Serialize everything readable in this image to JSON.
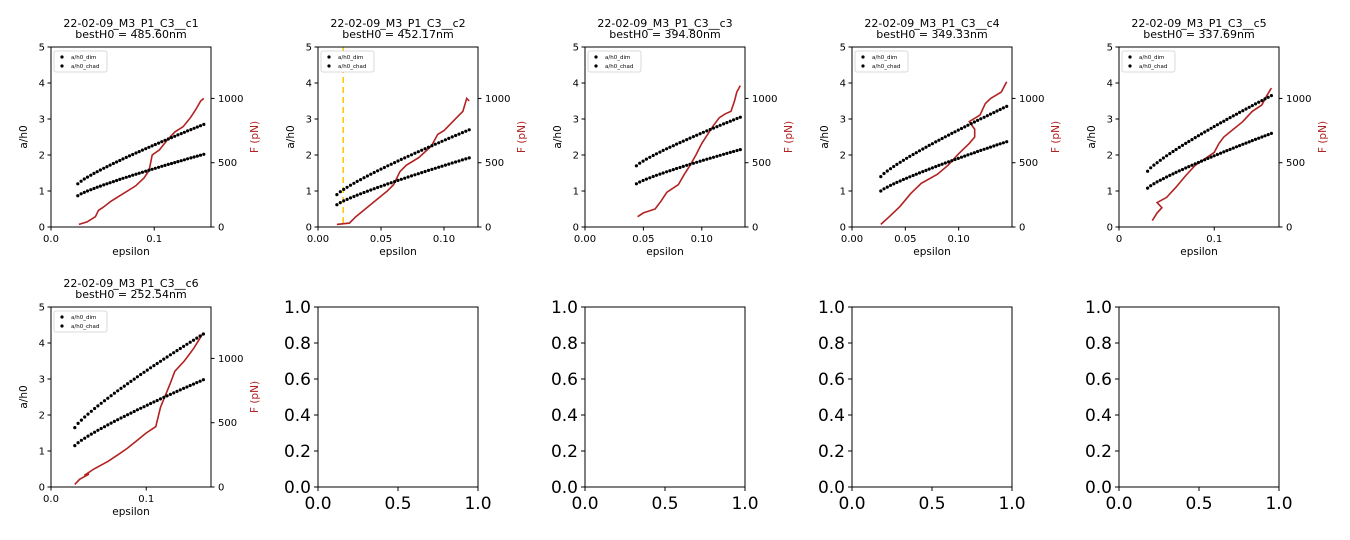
{
  "figure": {
    "background": "#ffffff",
    "grid_rows": 2,
    "grid_cols": 5
  },
  "colors": {
    "dim": "#000000",
    "chad": "#000000",
    "force": "#b22222",
    "right_axis": "#b22222",
    "vline": "#ffc400"
  },
  "chart_data": [
    {
      "type": "scatter+line",
      "title": "22-02-09_M3_P1_C3__c1",
      "subtitle": "bestH0 = 485.60nm",
      "xlabel": "epsilon",
      "ylabel": "a/h0",
      "y2label": "F (pN)",
      "xlim": [
        0,
        0.155
      ],
      "xticks": [
        0.0,
        0.1
      ],
      "xtick_labels": [
        "0.0",
        "0.1"
      ],
      "ylim": [
        0,
        5
      ],
      "yticks": [
        0,
        1,
        2,
        3,
        4,
        5
      ],
      "ytick_labels": [
        "0",
        "1",
        "2",
        "3",
        "4",
        "5"
      ],
      "y2lim": [
        0,
        1400
      ],
      "y2ticks": [
        0,
        500,
        1000
      ],
      "y2tick_labels": [
        "0",
        "500",
        "1000"
      ],
      "legend": [
        "a/h0_dim",
        "a/h0_chad"
      ],
      "legend_loc": "upper-left",
      "series": [
        {
          "name": "a/h0_dim",
          "x0": 0.026,
          "x1": 0.148,
          "y0": 1.2,
          "y1": 2.85,
          "curve": 1.0,
          "n": 40
        },
        {
          "name": "a/h0_chad",
          "x0": 0.026,
          "x1": 0.148,
          "y0": 0.87,
          "y1": 2.02,
          "curve": 1.0,
          "n": 40
        }
      ],
      "force": {
        "x": [
          0.027,
          0.035,
          0.043,
          0.046,
          0.05,
          0.058,
          0.07,
          0.082,
          0.09,
          0.095,
          0.098,
          0.105,
          0.113,
          0.12,
          0.128,
          0.135,
          0.14,
          0.145,
          0.148
        ],
        "y": [
          20,
          40,
          80,
          130,
          150,
          200,
          260,
          320,
          380,
          440,
          560,
          600,
          680,
          740,
          780,
          850,
          910,
          980,
          1000
        ]
      }
    },
    {
      "type": "scatter+line",
      "title": "22-02-09_M3_P1_C3__c2",
      "subtitle": "bestH0 = 452.17nm",
      "xlabel": "epsilon",
      "ylabel": "a/h0",
      "y2label": "F (pN)",
      "xlim": [
        0,
        0.127
      ],
      "xticks": [
        0.0,
        0.05,
        0.1
      ],
      "xtick_labels": [
        "0.00",
        "0.05",
        "0.10"
      ],
      "ylim": [
        0,
        5
      ],
      "yticks": [
        0,
        1,
        2,
        3,
        4,
        5
      ],
      "ytick_labels": [
        "0",
        "1",
        "2",
        "3",
        "4",
        "5"
      ],
      "y2lim": [
        0,
        1400
      ],
      "y2ticks": [
        0,
        500,
        1000
      ],
      "y2tick_labels": [
        "0",
        "500",
        "1000"
      ],
      "legend": [
        "a/h0_dim",
        "a/h0_chad"
      ],
      "legend_loc": "upper-left",
      "vline": 0.02,
      "series": [
        {
          "name": "a/h0_dim",
          "x0": 0.015,
          "x1": 0.12,
          "y0": 0.9,
          "y1": 2.7,
          "curve": 1.0,
          "n": 40
        },
        {
          "name": "a/h0_chad",
          "x0": 0.015,
          "x1": 0.12,
          "y0": 0.62,
          "y1": 1.92,
          "curve": 1.0,
          "n": 40
        }
      ],
      "force": {
        "x": [
          0.015,
          0.025,
          0.03,
          0.035,
          0.045,
          0.055,
          0.06,
          0.065,
          0.07,
          0.08,
          0.09,
          0.095,
          0.1,
          0.11,
          0.115,
          0.118,
          0.12
        ],
        "y": [
          20,
          30,
          80,
          120,
          200,
          280,
          330,
          430,
          480,
          540,
          630,
          720,
          750,
          850,
          900,
          1000,
          980
        ]
      }
    },
    {
      "type": "scatter+line",
      "title": "22-02-09_M3_P1_C3__c3",
      "subtitle": "bestH0 = 394.80nm",
      "xlabel": "epsilon",
      "ylabel": "a/h0",
      "y2label": "F (pN)",
      "xlim": [
        0,
        0.137
      ],
      "xticks": [
        0.0,
        0.05,
        0.1
      ],
      "xtick_labels": [
        "0.00",
        "0.05",
        "0.10"
      ],
      "ylim": [
        0,
        5
      ],
      "yticks": [
        0,
        1,
        2,
        3,
        4,
        5
      ],
      "ytick_labels": [
        "0",
        "1",
        "2",
        "3",
        "4",
        "5"
      ],
      "y2lim": [
        0,
        1400
      ],
      "y2ticks": [
        0,
        500,
        1000
      ],
      "y2tick_labels": [
        "0",
        "500",
        "1000"
      ],
      "legend": [
        "a/h0_dim",
        "a/h0_chad"
      ],
      "legend_loc": "upper-left",
      "series": [
        {
          "name": "a/h0_dim",
          "x0": 0.044,
          "x1": 0.133,
          "y0": 1.7,
          "y1": 3.05,
          "curve": 1.0,
          "n": 32
        },
        {
          "name": "a/h0_chad",
          "x0": 0.044,
          "x1": 0.133,
          "y0": 1.2,
          "y1": 2.15,
          "curve": 1.0,
          "n": 32
        }
      ],
      "force": {
        "x": [
          0.045,
          0.05,
          0.06,
          0.065,
          0.07,
          0.08,
          0.085,
          0.09,
          0.095,
          0.1,
          0.105,
          0.11,
          0.115,
          0.12,
          0.125,
          0.128,
          0.13,
          0.133
        ],
        "y": [
          80,
          110,
          140,
          200,
          270,
          330,
          410,
          480,
          560,
          650,
          720,
          790,
          850,
          880,
          900,
          980,
          1050,
          1100
        ]
      }
    },
    {
      "type": "scatter+line",
      "title": "22-02-09_M3_P1_C3__c4",
      "subtitle": "bestH0 = 349.33nm",
      "xlabel": "epsilon",
      "ylabel": "a/h0",
      "y2label": "F (pN)",
      "xlim": [
        0,
        0.15
      ],
      "xticks": [
        0.0,
        0.05,
        0.1
      ],
      "xtick_labels": [
        "0.00",
        "0.05",
        "0.10"
      ],
      "ylim": [
        0,
        5
      ],
      "yticks": [
        0,
        1,
        2,
        3,
        4,
        5
      ],
      "ytick_labels": [
        "0",
        "1",
        "2",
        "3",
        "4",
        "5"
      ],
      "y2lim": [
        0,
        1400
      ],
      "y2ticks": [
        0,
        500,
        1000
      ],
      "y2tick_labels": [
        "0",
        "500",
        "1000"
      ],
      "legend": [
        "a/h0_dim",
        "a/h0_chad"
      ],
      "legend_loc": "upper-left",
      "series": [
        {
          "name": "a/h0_dim",
          "x0": 0.027,
          "x1": 0.145,
          "y0": 1.4,
          "y1": 3.35,
          "curve": 1.0,
          "n": 40
        },
        {
          "name": "a/h0_chad",
          "x0": 0.027,
          "x1": 0.145,
          "y0": 1.0,
          "y1": 2.37,
          "curve": 1.0,
          "n": 40
        }
      ],
      "force": {
        "x": [
          0.027,
          0.035,
          0.045,
          0.055,
          0.065,
          0.08,
          0.09,
          0.1,
          0.11,
          0.115,
          0.115,
          0.11,
          0.12,
          0.125,
          0.13,
          0.14,
          0.145
        ],
        "y": [
          20,
          80,
          160,
          260,
          340,
          410,
          480,
          570,
          650,
          700,
          760,
          820,
          870,
          960,
          1000,
          1050,
          1130
        ]
      }
    },
    {
      "type": "scatter+line",
      "title": "22-02-09_M3_P1_C3__c5",
      "subtitle": "bestH0 = 337.69nm",
      "xlabel": "epsilon",
      "ylabel": "a/h0",
      "y2label": "F (pN)",
      "xlim": [
        0,
        0.168
      ],
      "xticks": [
        0.0,
        0.1
      ],
      "xtick_labels": [
        "0",
        "0.1"
      ],
      "ylim": [
        0,
        5
      ],
      "yticks": [
        0,
        1,
        2,
        3,
        4,
        5
      ],
      "ytick_labels": [
        "0",
        "1",
        "2",
        "3",
        "4",
        "5"
      ],
      "y2lim": [
        0,
        1400
      ],
      "y2ticks": [
        0,
        500,
        1000
      ],
      "y2tick_labels": [
        "0",
        "500",
        "1000"
      ],
      "legend": [
        "a/h0_dim",
        "a/h0_chad"
      ],
      "legend_loc": "upper-left",
      "series": [
        {
          "name": "a/h0_dim",
          "x0": 0.03,
          "x1": 0.16,
          "y0": 1.55,
          "y1": 3.65,
          "curve": 1.0,
          "n": 40
        },
        {
          "name": "a/h0_chad",
          "x0": 0.03,
          "x1": 0.16,
          "y0": 1.08,
          "y1": 2.6,
          "curve": 1.0,
          "n": 40
        }
      ],
      "force": {
        "x": [
          0.035,
          0.04,
          0.045,
          0.04,
          0.05,
          0.06,
          0.07,
          0.08,
          0.09,
          0.1,
          0.105,
          0.11,
          0.12,
          0.13,
          0.14,
          0.15,
          0.155,
          0.16
        ],
        "y": [
          50,
          110,
          150,
          190,
          230,
          310,
          400,
          480,
          530,
          580,
          650,
          700,
          760,
          820,
          900,
          950,
          1020,
          1080
        ]
      }
    },
    {
      "type": "scatter+line",
      "title": "22-02-09_M3_P1_C3__c6",
      "subtitle": "bestH0 = 252.54nm",
      "xlabel": "epsilon",
      "ylabel": "a/h0",
      "y2label": "F (pN)",
      "xlim": [
        0,
        0.168
      ],
      "xticks": [
        0.0,
        0.1
      ],
      "xtick_labels": [
        "0.0",
        "0.1"
      ],
      "ylim": [
        0,
        5
      ],
      "yticks": [
        0,
        1,
        2,
        3,
        4,
        5
      ],
      "ytick_labels": [
        "0",
        "1",
        "2",
        "3",
        "4",
        "5"
      ],
      "y2lim": [
        0,
        1400
      ],
      "y2ticks": [
        0,
        500,
        1000
      ],
      "y2tick_labels": [
        "0",
        "500",
        "1000"
      ],
      "legend": [
        "a/h0_dim",
        "a/h0_chad"
      ],
      "legend_loc": "upper-left",
      "series": [
        {
          "name": "a/h0_dim",
          "x0": 0.025,
          "x1": 0.16,
          "y0": 1.65,
          "y1": 4.25,
          "curve": 1.0,
          "n": 40
        },
        {
          "name": "a/h0_chad",
          "x0": 0.025,
          "x1": 0.16,
          "y0": 1.15,
          "y1": 2.98,
          "curve": 1.0,
          "n": 40
        }
      ],
      "force": {
        "x": [
          0.025,
          0.03,
          0.04,
          0.035,
          0.045,
          0.06,
          0.07,
          0.08,
          0.09,
          0.1,
          0.11,
          0.115,
          0.125,
          0.13,
          0.14,
          0.145,
          0.15,
          0.16
        ],
        "y": [
          20,
          60,
          100,
          90,
          140,
          200,
          250,
          300,
          360,
          420,
          470,
          620,
          800,
          900,
          980,
          1030,
          1080,
          1200
        ]
      }
    },
    {
      "type": "empty",
      "xlim": [
        0,
        1
      ],
      "ylim": [
        0,
        1
      ],
      "xtick_labels": [
        "0.0",
        "0.5",
        "1.0"
      ],
      "ytick_labels": [
        "0.0",
        "0.2",
        "0.4",
        "0.6",
        "0.8",
        "1.0"
      ]
    },
    {
      "type": "empty",
      "xlim": [
        0,
        1
      ],
      "ylim": [
        0,
        1
      ],
      "xtick_labels": [
        "0.0",
        "0.5",
        "1.0"
      ],
      "ytick_labels": [
        "0.0",
        "0.2",
        "0.4",
        "0.6",
        "0.8",
        "1.0"
      ]
    },
    {
      "type": "empty",
      "xlim": [
        0,
        1
      ],
      "ylim": [
        0,
        1
      ],
      "xtick_labels": [
        "0.0",
        "0.5",
        "1.0"
      ],
      "ytick_labels": [
        "0.0",
        "0.2",
        "0.4",
        "0.6",
        "0.8",
        "1.0"
      ]
    },
    {
      "type": "empty",
      "xlim": [
        0,
        1
      ],
      "ylim": [
        0,
        1
      ],
      "xtick_labels": [
        "0.0",
        "0.5",
        "1.0"
      ],
      "ytick_labels": [
        "0.0",
        "0.2",
        "0.4",
        "0.6",
        "0.8",
        "1.0"
      ]
    }
  ]
}
